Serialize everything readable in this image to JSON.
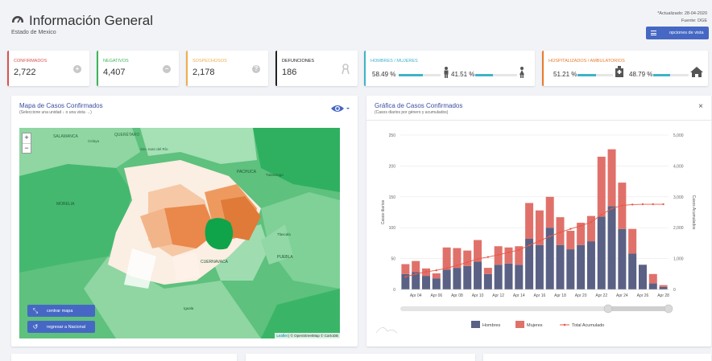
{
  "header": {
    "title": "Información General",
    "subtitle": "Estado de Mexico",
    "updated": "*Actualizado: 28-04-2020",
    "source": "Fuente: DGE",
    "options_button": "opciones de vista"
  },
  "cards": {
    "confirmados": {
      "label": "CONFIRMADOS",
      "value": "2,722",
      "color": "#d9534f"
    },
    "negativos": {
      "label": "NEGATIVOS",
      "value": "4,407",
      "color": "#3cb55a"
    },
    "sospechosos": {
      "label": "SOSPECHOSOS",
      "value": "2,178",
      "color": "#f0ad4e"
    },
    "defunciones": {
      "label": "DEFUNCIONES",
      "value": "186",
      "color": "#222222"
    },
    "genero": {
      "label": "HOMBRES / MUJERES",
      "men": "58.49 %",
      "women": "41.51 %",
      "men_fraction": 0.5849,
      "women_fraction": 0.4151,
      "color": "#3fb3c6"
    },
    "hospital": {
      "label": "HOSPITALIZADOS / AMBULATORIOS",
      "hosp": "51.21 %",
      "amb": "48.79 %",
      "hosp_fraction": 0.5121,
      "amb_fraction": 0.4879,
      "color": "#e87b2d"
    }
  },
  "map_panel": {
    "title": "Mapa de Casos Confirmados",
    "subtitle": "(Seleccione una unidad ↓ o una vista →)",
    "zoom_in": "+",
    "zoom_out": "−",
    "center_button": "centrar mapa",
    "national_button": "regresar a Nacional",
    "attribution_leaflet": "Leaflet",
    "attribution_rest": " | © OpenStreetMap © CartoDB",
    "place_labels": [
      "SALAMANCA",
      "QUERÉTARO",
      "Celaya",
      "San Juan del Río",
      "PACHUCA",
      "Tulancingo",
      "MORELIA",
      "Tlaxcala",
      "PUEBLA",
      "CUERNAVACA",
      "Iguala"
    ]
  },
  "chart_panel": {
    "title": "Gráfica de Casos Confirmados",
    "subtitle": "(Casos diarios por género y acumulados)",
    "close": "×"
  },
  "chart_data": {
    "type": "bar",
    "stacked": true,
    "categories": [
      "Apr 03",
      "Apr 04",
      "Apr 05",
      "Apr 06",
      "Apr 07",
      "Apr 08",
      "Apr 09",
      "Apr 10",
      "Apr 11",
      "Apr 12",
      "Apr 13",
      "Apr 14",
      "Apr 15",
      "Apr 16",
      "Apr 17",
      "Apr 18",
      "Apr 19",
      "Apr 20",
      "Apr 21",
      "Apr 22",
      "Apr 23",
      "Apr 24",
      "Apr 25",
      "Apr 26",
      "Apr 27",
      "Apr 28"
    ],
    "xtick_labels": [
      "Apr 04",
      "Apr 06",
      "Apr 08",
      "Apr 10",
      "Apr 12",
      "Apr 14",
      "Apr 16",
      "Apr 18",
      "Apr 20",
      "Apr 22",
      "Apr 24",
      "Apr 26",
      "Apr 28"
    ],
    "series": [
      {
        "name": "Hombres",
        "color": "#5a6184",
        "values": [
          25,
          28,
          22,
          18,
          32,
          35,
          38,
          45,
          25,
          40,
          42,
          40,
          82,
          72,
          100,
          72,
          65,
          72,
          78,
          118,
          135,
          98,
          58,
          40,
          10,
          4
        ]
      },
      {
        "name": "Mujeres",
        "color": "#e0716a",
        "values": [
          16,
          18,
          12,
          8,
          36,
          32,
          25,
          35,
          10,
          30,
          26,
          30,
          58,
          56,
          50,
          45,
          30,
          36,
          41,
          97,
          92,
          75,
          40,
          0,
          15,
          3
        ]
      }
    ],
    "line": {
      "name": "Total Acumulado",
      "color": "#e8594a",
      "values": [
        410,
        500,
        570,
        620,
        690,
        780,
        880,
        990,
        1050,
        1120,
        1200,
        1280,
        1430,
        1570,
        1720,
        1850,
        1960,
        2060,
        2180,
        2420,
        2620,
        2720,
        2750,
        2760,
        2760,
        2760
      ]
    },
    "ylabel_left": "Casos diarios",
    "ylabel_right": "Casos Acumulados",
    "yticks_left": [
      0,
      50,
      100,
      150,
      200,
      250
    ],
    "yticks_right": [
      "0",
      "1,000",
      "2,000",
      "3,000",
      "4,000",
      "5,000"
    ],
    "ylim_left": [
      0,
      250
    ],
    "ylim_right": [
      0,
      5000
    ],
    "legend_position": "bottom"
  }
}
